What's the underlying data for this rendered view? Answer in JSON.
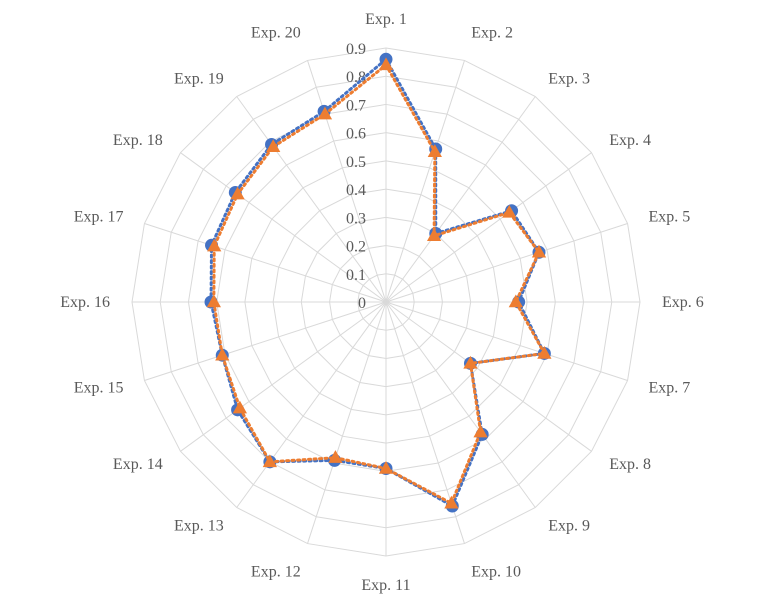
{
  "chart_data": {
    "type": "radar",
    "title": "",
    "categories": [
      "Exp. 1",
      "Exp. 2",
      "Exp. 3",
      "Exp. 4",
      "Exp. 5",
      "Exp. 6",
      "Exp. 7",
      "Exp. 8",
      "Exp. 9",
      "Exp. 10",
      "Exp. 11",
      "Exp. 12",
      "Exp. 13",
      "Exp. 14",
      "Exp. 15",
      "Exp. 16",
      "Exp. 17",
      "Exp. 18",
      "Exp. 19",
      "Exp. 20"
    ],
    "ticks": [
      "0",
      "0.1",
      "0.2",
      "0.3",
      "0.4",
      "0.5",
      "0.6",
      "0.7",
      "0.8",
      "0.9"
    ],
    "rlim": [
      0,
      0.9
    ],
    "grid": true,
    "legend": "none",
    "series": [
      {
        "marker": "circle",
        "color": "#4472C4",
        "values": [
          0.86,
          0.57,
          0.3,
          0.55,
          0.57,
          0.47,
          0.59,
          0.37,
          0.58,
          0.76,
          0.59,
          0.59,
          0.7,
          0.65,
          0.61,
          0.62,
          0.65,
          0.66,
          0.69,
          0.71
        ]
      },
      {
        "marker": "triangle",
        "color": "#ED7D31",
        "values": [
          0.84,
          0.56,
          0.29,
          0.54,
          0.57,
          0.46,
          0.59,
          0.37,
          0.57,
          0.75,
          0.59,
          0.58,
          0.7,
          0.64,
          0.61,
          0.61,
          0.64,
          0.65,
          0.68,
          0.7
        ]
      }
    ]
  }
}
